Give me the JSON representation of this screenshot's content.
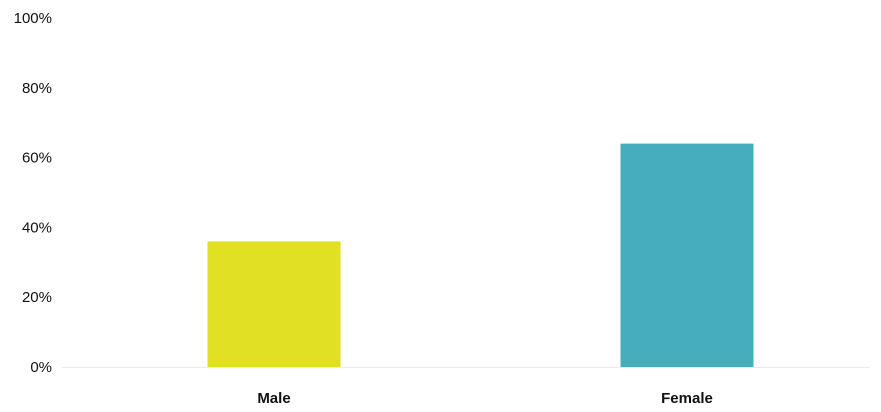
{
  "chart_data": {
    "type": "bar",
    "categories": [
      "Male",
      "Female"
    ],
    "values": [
      36,
      64
    ],
    "unit": "%",
    "ylim": [
      0,
      100
    ],
    "yticks": [
      {
        "value": 0,
        "label": "0%"
      },
      {
        "value": 20,
        "label": "20%"
      },
      {
        "value": 40,
        "label": "40%"
      },
      {
        "value": 60,
        "label": "60%"
      },
      {
        "value": 80,
        "label": "80%"
      },
      {
        "value": 100,
        "label": "100%"
      }
    ],
    "title": "",
    "xlabel": "",
    "ylabel": "",
    "grid": false,
    "legend": "none",
    "colors": [
      "#e2e022",
      "#45adbd"
    ],
    "baseline_color": "#ececec"
  }
}
